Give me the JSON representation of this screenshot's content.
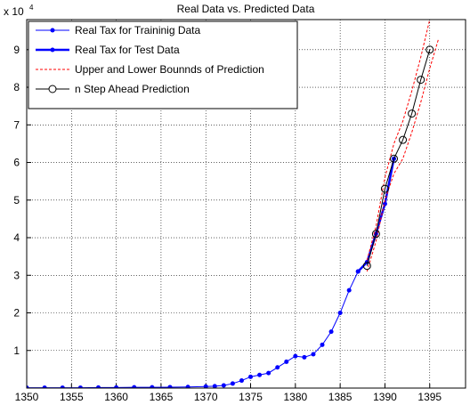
{
  "chart_data": {
    "type": "line",
    "title": "Real Data vs. Predicted Data",
    "y_multiplier": {
      "base": "x 10",
      "exponent": "4"
    },
    "xlim": [
      1350,
      1399
    ],
    "xticks": [
      1350,
      1355,
      1360,
      1365,
      1370,
      1375,
      1380,
      1385,
      1390,
      1395
    ],
    "ylim": [
      0,
      98000
    ],
    "yticks": [
      {
        "value": 10000,
        "label": "1"
      },
      {
        "value": 20000,
        "label": "2"
      },
      {
        "value": 30000,
        "label": "3"
      },
      {
        "value": 40000,
        "label": "4"
      },
      {
        "value": 50000,
        "label": "5"
      },
      {
        "value": 60000,
        "label": "6"
      },
      {
        "value": 70000,
        "label": "7"
      },
      {
        "value": 80000,
        "label": "8"
      },
      {
        "value": 90000,
        "label": "9"
      }
    ],
    "grid": true,
    "legend": "upper-left",
    "series": [
      {
        "name": "Real Tax for Traininig Data",
        "color": "#0000ff",
        "marker": "dot",
        "width": 1,
        "x": [
          1350,
          1352,
          1354,
          1356,
          1358,
          1360,
          1362,
          1364,
          1366,
          1368,
          1370,
          1371,
          1372,
          1373,
          1374,
          1375,
          1376,
          1377,
          1378,
          1379,
          1380,
          1381,
          1382,
          1383,
          1384,
          1385,
          1386,
          1387
        ],
        "values": [
          100,
          100,
          100,
          100,
          150,
          150,
          200,
          200,
          250,
          300,
          400,
          500,
          700,
          1200,
          2000,
          3000,
          3500,
          4000,
          5500,
          7000,
          8500,
          8200,
          9000,
          11500,
          15000,
          20000,
          26000,
          31000
        ]
      },
      {
        "name": "Real Tax for Test Data",
        "color": "#0000ff",
        "marker": "dot",
        "width": 2.5,
        "x": [
          1387,
          1388,
          1389,
          1390,
          1391
        ],
        "values": [
          31000,
          33500,
          41000,
          49000,
          61000
        ]
      },
      {
        "name": "Upper and Lower Bounnds of Prediction",
        "color": "#ff0000",
        "dash": true,
        "width": 1,
        "x": [
          1388,
          1389,
          1390,
          1391,
          1392,
          1393,
          1394,
          1395,
          1396
        ],
        "values": [
          34000,
          43000,
          56000,
          65000,
          71000,
          79000,
          88000,
          98000,
          108000
        ],
        "lower": [
          31000,
          39000,
          50000,
          57000,
          61000,
          68000,
          76000,
          85000,
          93000
        ]
      },
      {
        "name": "n Step Ahead Prediction",
        "color": "#000000",
        "marker": "circle",
        "width": 1,
        "x": [
          1388,
          1389,
          1390,
          1391,
          1392,
          1393,
          1394,
          1395
        ],
        "values": [
          32500,
          41000,
          53000,
          61000,
          66000,
          73000,
          82000,
          90000
        ]
      }
    ]
  }
}
